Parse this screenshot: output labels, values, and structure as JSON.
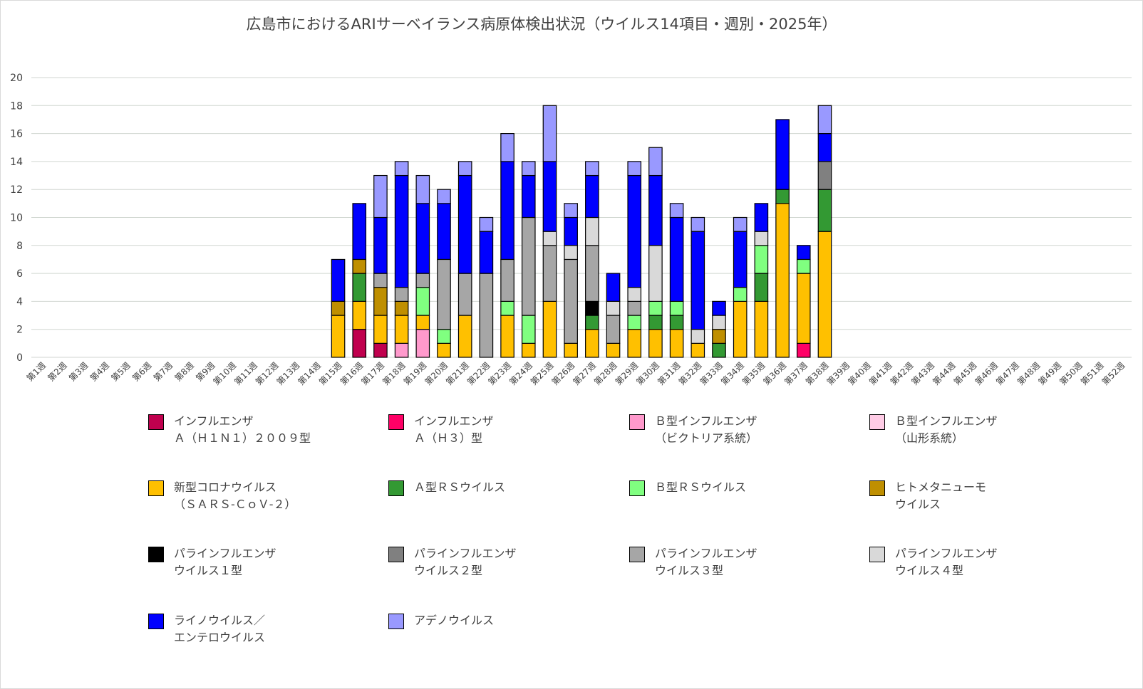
{
  "chart_data": {
    "type": "bar",
    "stacked": true,
    "title": "広島市におけるARIサーベイランス病原体検出状況（ウイルス14項目・週別・2025年）",
    "xlabel": "",
    "ylabel": "",
    "ylim": [
      0,
      20
    ],
    "yticks": [
      0,
      2,
      4,
      6,
      8,
      10,
      12,
      14,
      16,
      18,
      20
    ],
    "grid": true,
    "legend_position": "bottom",
    "categories": [
      "第1週",
      "第2週",
      "第3週",
      "第4週",
      "第5週",
      "第6週",
      "第7週",
      "第8週",
      "第9週",
      "第10週",
      "第11週",
      "第12週",
      "第13週",
      "第14週",
      "第15週",
      "第16週",
      "第17週",
      "第18週",
      "第19週",
      "第20週",
      "第21週",
      "第22週",
      "第23週",
      "第24週",
      "第25週",
      "第26週",
      "第27週",
      "第28週",
      "第29週",
      "第30週",
      "第31週",
      "第32週",
      "第33週",
      "第34週",
      "第35週",
      "第36週",
      "第37週",
      "第38週",
      "第39週",
      "第40週",
      "第41週",
      "第42週",
      "第43週",
      "第44週",
      "第45週",
      "第46週",
      "第47週",
      "第48週",
      "第49週",
      "第50週",
      "第51週",
      "第52週"
    ],
    "series": [
      {
        "name": "インフルエンザ\nＡ（Ｈ１Ｎ１）２００９型",
        "color": "#c0004e",
        "values": [
          0,
          0,
          0,
          0,
          0,
          0,
          0,
          0,
          0,
          0,
          0,
          0,
          0,
          0,
          0,
          2,
          1,
          0,
          0,
          0,
          0,
          0,
          0,
          0,
          0,
          0,
          0,
          0,
          0,
          0,
          0,
          0,
          0,
          0,
          0,
          0,
          0,
          0,
          0,
          0,
          0,
          0,
          0,
          0,
          0,
          0,
          0,
          0,
          0,
          0,
          0,
          0
        ]
      },
      {
        "name": "インフルエンザ\nＡ（Ｈ３）型",
        "color": "#ff0066",
        "values": [
          0,
          0,
          0,
          0,
          0,
          0,
          0,
          0,
          0,
          0,
          0,
          0,
          0,
          0,
          0,
          0,
          0,
          0,
          0,
          0,
          0,
          0,
          0,
          0,
          0,
          0,
          0,
          0,
          0,
          0,
          0,
          0,
          0,
          0,
          0,
          0,
          1,
          0,
          0,
          0,
          0,
          0,
          0,
          0,
          0,
          0,
          0,
          0,
          0,
          0,
          0,
          0
        ]
      },
      {
        "name": "Ｂ型インフルエンザ\n（ビクトリア系統）",
        "color": "#ff99cc",
        "values": [
          0,
          0,
          0,
          0,
          0,
          0,
          0,
          0,
          0,
          0,
          0,
          0,
          0,
          0,
          0,
          0,
          0,
          1,
          2,
          0,
          0,
          0,
          0,
          0,
          0,
          0,
          0,
          0,
          0,
          0,
          0,
          0,
          0,
          0,
          0,
          0,
          0,
          0,
          0,
          0,
          0,
          0,
          0,
          0,
          0,
          0,
          0,
          0,
          0,
          0,
          0,
          0
        ]
      },
      {
        "name": "Ｂ型インフルエンザ\n（山形系統）",
        "color": "#ffcce6",
        "values": [
          0,
          0,
          0,
          0,
          0,
          0,
          0,
          0,
          0,
          0,
          0,
          0,
          0,
          0,
          0,
          0,
          0,
          0,
          0,
          0,
          0,
          0,
          0,
          0,
          0,
          0,
          0,
          0,
          0,
          0,
          0,
          0,
          0,
          0,
          0,
          0,
          0,
          0,
          0,
          0,
          0,
          0,
          0,
          0,
          0,
          0,
          0,
          0,
          0,
          0,
          0,
          0
        ]
      },
      {
        "name": "新型コロナウイルス\n（ＳＡＲＳ-ＣｏＶ-２）",
        "color": "#ffc000",
        "values": [
          0,
          0,
          0,
          0,
          0,
          0,
          0,
          0,
          0,
          0,
          0,
          0,
          0,
          0,
          3,
          2,
          2,
          2,
          1,
          1,
          3,
          0,
          3,
          1,
          4,
          1,
          2,
          1,
          2,
          2,
          2,
          1,
          0,
          4,
          4,
          11,
          5,
          9,
          0,
          0,
          0,
          0,
          0,
          0,
          0,
          0,
          0,
          0,
          0,
          0,
          0,
          0
        ]
      },
      {
        "name": "Ａ型ＲＳウイルス",
        "color": "#339933",
        "values": [
          0,
          0,
          0,
          0,
          0,
          0,
          0,
          0,
          0,
          0,
          0,
          0,
          0,
          0,
          0,
          2,
          0,
          0,
          0,
          0,
          0,
          0,
          0,
          0,
          0,
          0,
          1,
          0,
          0,
          1,
          1,
          0,
          1,
          0,
          2,
          1,
          0,
          3,
          0,
          0,
          0,
          0,
          0,
          0,
          0,
          0,
          0,
          0,
          0,
          0,
          0,
          0
        ]
      },
      {
        "name": "Ｂ型ＲＳウイルス",
        "color": "#80ff80",
        "values": [
          0,
          0,
          0,
          0,
          0,
          0,
          0,
          0,
          0,
          0,
          0,
          0,
          0,
          0,
          0,
          0,
          0,
          0,
          2,
          1,
          0,
          0,
          1,
          2,
          0,
          0,
          0,
          0,
          1,
          1,
          1,
          0,
          0,
          1,
          2,
          0,
          1,
          0,
          0,
          0,
          0,
          0,
          0,
          0,
          0,
          0,
          0,
          0,
          0,
          0,
          0,
          0
        ]
      },
      {
        "name": "ヒトメタニューモ\nウイルス",
        "color": "#bf8f00",
        "values": [
          0,
          0,
          0,
          0,
          0,
          0,
          0,
          0,
          0,
          0,
          0,
          0,
          0,
          0,
          1,
          1,
          2,
          1,
          0,
          0,
          0,
          0,
          0,
          0,
          0,
          0,
          0,
          0,
          0,
          0,
          0,
          0,
          1,
          0,
          0,
          0,
          0,
          0,
          0,
          0,
          0,
          0,
          0,
          0,
          0,
          0,
          0,
          0,
          0,
          0,
          0,
          0
        ]
      },
      {
        "name": "パラインフルエンザ\nウイルス１型",
        "color": "#000000",
        "values": [
          0,
          0,
          0,
          0,
          0,
          0,
          0,
          0,
          0,
          0,
          0,
          0,
          0,
          0,
          0,
          0,
          0,
          0,
          0,
          0,
          0,
          0,
          0,
          0,
          0,
          0,
          1,
          0,
          0,
          0,
          0,
          0,
          0,
          0,
          0,
          0,
          0,
          0,
          0,
          0,
          0,
          0,
          0,
          0,
          0,
          0,
          0,
          0,
          0,
          0,
          0,
          0
        ]
      },
      {
        "name": "パラインフルエンザ\nウイルス２型",
        "color": "#808080",
        "values": [
          0,
          0,
          0,
          0,
          0,
          0,
          0,
          0,
          0,
          0,
          0,
          0,
          0,
          0,
          0,
          0,
          0,
          0,
          0,
          0,
          0,
          0,
          0,
          0,
          0,
          0,
          0,
          0,
          0,
          0,
          0,
          0,
          0,
          0,
          0,
          0,
          0,
          2,
          0,
          0,
          0,
          0,
          0,
          0,
          0,
          0,
          0,
          0,
          0,
          0,
          0,
          0
        ]
      },
      {
        "name": "パラインフルエンザ\nウイルス３型",
        "color": "#a6a6a6",
        "values": [
          0,
          0,
          0,
          0,
          0,
          0,
          0,
          0,
          0,
          0,
          0,
          0,
          0,
          0,
          0,
          0,
          1,
          1,
          1,
          5,
          3,
          6,
          3,
          7,
          4,
          6,
          4,
          2,
          1,
          0,
          0,
          0,
          0,
          0,
          0,
          0,
          0,
          0,
          0,
          0,
          0,
          0,
          0,
          0,
          0,
          0,
          0,
          0,
          0,
          0,
          0,
          0
        ]
      },
      {
        "name": "パラインフルエンザ\nウイルス４型",
        "color": "#d9d9d9",
        "values": [
          0,
          0,
          0,
          0,
          0,
          0,
          0,
          0,
          0,
          0,
          0,
          0,
          0,
          0,
          0,
          0,
          0,
          0,
          0,
          0,
          0,
          0,
          0,
          0,
          1,
          1,
          2,
          1,
          1,
          4,
          0,
          1,
          1,
          0,
          1,
          0,
          0,
          0,
          0,
          0,
          0,
          0,
          0,
          0,
          0,
          0,
          0,
          0,
          0,
          0,
          0,
          0
        ]
      },
      {
        "name": "ライノウイルス／\nエンテロウイルス",
        "color": "#0000ff",
        "values": [
          0,
          0,
          0,
          0,
          0,
          0,
          0,
          0,
          0,
          0,
          0,
          0,
          0,
          0,
          3,
          4,
          4,
          8,
          5,
          4,
          7,
          3,
          7,
          3,
          5,
          2,
          3,
          2,
          8,
          5,
          6,
          7,
          1,
          4,
          2,
          5,
          1,
          2,
          0,
          0,
          0,
          0,
          0,
          0,
          0,
          0,
          0,
          0,
          0,
          0,
          0,
          0
        ]
      },
      {
        "name": "アデノウイルス",
        "color": "#9999ff",
        "values": [
          0,
          0,
          0,
          0,
          0,
          0,
          0,
          0,
          0,
          0,
          0,
          0,
          0,
          0,
          0,
          0,
          3,
          1,
          2,
          1,
          1,
          1,
          2,
          1,
          4,
          1,
          1,
          0,
          1,
          2,
          1,
          1,
          0,
          1,
          0,
          0,
          0,
          2,
          0,
          0,
          0,
          0,
          0,
          0,
          0,
          0,
          0,
          0,
          0,
          0,
          0,
          0
        ]
      }
    ]
  }
}
